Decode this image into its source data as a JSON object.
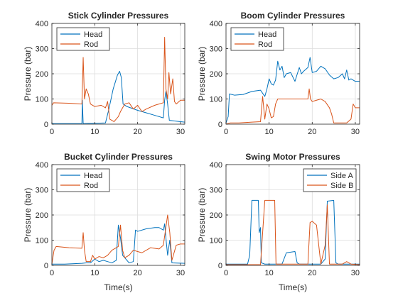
{
  "colors": {
    "series1": "#0072BD",
    "series2": "#D95319",
    "grid": "#dcdcdc",
    "axis": "#262626"
  },
  "chart_data": [
    {
      "type": "line",
      "title": "Stick Cylinder Pressures",
      "xlabel": "",
      "ylabel": "Pressure (bar)",
      "xlim": [
        0,
        31
      ],
      "ylim": [
        0,
        400
      ],
      "xticks": [
        0,
        10,
        20,
        30
      ],
      "yticks": [
        0,
        100,
        200,
        300,
        400
      ],
      "grid": true,
      "legend": "top-left",
      "series": [
        {
          "name": "Head",
          "points": [
            [
              0,
              2
            ],
            [
              7,
              2
            ],
            [
              7.1,
              95
            ],
            [
              7.3,
              2
            ],
            [
              12.5,
              5
            ],
            [
              13.3,
              60
            ],
            [
              14.3,
              140
            ],
            [
              15.3,
              195
            ],
            [
              15.8,
              210
            ],
            [
              16.2,
              185
            ],
            [
              16.6,
              80
            ],
            [
              17.5,
              70
            ],
            [
              20,
              55
            ],
            [
              22,
              45
            ],
            [
              24,
              35
            ],
            [
              26,
              25
            ],
            [
              26.3,
              95
            ],
            [
              26.6,
              130
            ],
            [
              27,
              80
            ],
            [
              27.4,
              15
            ],
            [
              30,
              10
            ],
            [
              31,
              8
            ]
          ]
        },
        {
          "name": "Rod",
          "points": [
            [
              0,
              75
            ],
            [
              0.4,
              85
            ],
            [
              4,
              83
            ],
            [
              7,
              80
            ],
            [
              7.3,
              265
            ],
            [
              7.6,
              100
            ],
            [
              8,
              140
            ],
            [
              8.5,
              120
            ],
            [
              9,
              80
            ],
            [
              10,
              70
            ],
            [
              11.5,
              75
            ],
            [
              12.5,
              65
            ],
            [
              13,
              90
            ],
            [
              13.5,
              20
            ],
            [
              14.5,
              10
            ],
            [
              15.5,
              30
            ],
            [
              16,
              50
            ],
            [
              16.5,
              65
            ],
            [
              17,
              80
            ],
            [
              18,
              85
            ],
            [
              19,
              60
            ],
            [
              20,
              75
            ],
            [
              21,
              50
            ],
            [
              22,
              60
            ],
            [
              24,
              75
            ],
            [
              26,
              85
            ],
            [
              26.3,
              345
            ],
            [
              26.6,
              140
            ],
            [
              27,
              100
            ],
            [
              27.3,
              205
            ],
            [
              27.7,
              120
            ],
            [
              28.2,
              180
            ],
            [
              28.6,
              90
            ],
            [
              29,
              80
            ],
            [
              30,
              95
            ],
            [
              31,
              95
            ]
          ]
        }
      ]
    },
    {
      "type": "line",
      "title": "Boom Cylinder Pressures",
      "xlabel": "",
      "ylabel": "Pressure (bar)",
      "xlim": [
        0,
        31
      ],
      "ylim": [
        0,
        400
      ],
      "xticks": [
        0,
        10,
        20,
        30
      ],
      "yticks": [
        0,
        100,
        200,
        300,
        400
      ],
      "grid": true,
      "legend": "top-left",
      "series": [
        {
          "name": "Head",
          "points": [
            [
              0,
              5
            ],
            [
              0.5,
              30
            ],
            [
              0.8,
              120
            ],
            [
              2,
              115
            ],
            [
              4,
              118
            ],
            [
              6,
              130
            ],
            [
              8,
              135
            ],
            [
              9,
              110
            ],
            [
              9.5,
              140
            ],
            [
              10,
              180
            ],
            [
              10.5,
              160
            ],
            [
              11,
              155
            ],
            [
              11.5,
              175
            ],
            [
              12,
              250
            ],
            [
              12.5,
              215
            ],
            [
              13,
              230
            ],
            [
              13.5,
              185
            ],
            [
              14,
              200
            ],
            [
              15,
              205
            ],
            [
              16,
              170
            ],
            [
              17,
              225
            ],
            [
              17.5,
              200
            ],
            [
              18,
              210
            ],
            [
              19,
              225
            ],
            [
              19.5,
              265
            ],
            [
              20,
              205
            ],
            [
              21,
              210
            ],
            [
              22,
              230
            ],
            [
              23,
              220
            ],
            [
              24,
              195
            ],
            [
              25,
              180
            ],
            [
              26,
              185
            ],
            [
              27,
              200
            ],
            [
              27.5,
              180
            ],
            [
              28,
              215
            ],
            [
              28.5,
              175
            ],
            [
              29,
              180
            ],
            [
              30,
              170
            ],
            [
              31,
              170
            ]
          ]
        },
        {
          "name": "Rod",
          "points": [
            [
              0,
              0
            ],
            [
              1,
              5
            ],
            [
              3,
              5
            ],
            [
              6,
              8
            ],
            [
              8,
              10
            ],
            [
              8.5,
              110
            ],
            [
              9,
              20
            ],
            [
              9.5,
              80
            ],
            [
              10,
              60
            ],
            [
              10.5,
              25
            ],
            [
              11,
              30
            ],
            [
              11.5,
              80
            ],
            [
              12,
              100
            ],
            [
              13,
              100
            ],
            [
              15,
              100
            ],
            [
              17,
              100
            ],
            [
              19,
              100
            ],
            [
              19.3,
              140
            ],
            [
              19.6,
              100
            ],
            [
              20,
              90
            ],
            [
              21,
              95
            ],
            [
              22,
              100
            ],
            [
              23,
              90
            ],
            [
              24,
              65
            ],
            [
              24.5,
              40
            ],
            [
              25,
              5
            ],
            [
              28,
              5
            ],
            [
              29,
              20
            ],
            [
              29.5,
              80
            ],
            [
              30,
              65
            ],
            [
              31,
              65
            ]
          ]
        }
      ]
    },
    {
      "type": "line",
      "title": "Bucket Cylinder Pressures",
      "xlabel": "Time(s)",
      "ylabel": "Pressure (bar)",
      "xlim": [
        0,
        31
      ],
      "ylim": [
        0,
        400
      ],
      "xticks": [
        0,
        10,
        20,
        30
      ],
      "yticks": [
        0,
        100,
        200,
        300,
        400
      ],
      "grid": true,
      "legend": "top-left",
      "series": [
        {
          "name": "Head",
          "points": [
            [
              0,
              5
            ],
            [
              3,
              5
            ],
            [
              7,
              8
            ],
            [
              8,
              10
            ],
            [
              9,
              10
            ],
            [
              10,
              25
            ],
            [
              11,
              15
            ],
            [
              12,
              20
            ],
            [
              13,
              15
            ],
            [
              14,
              10
            ],
            [
              15,
              20
            ],
            [
              15.5,
              160
            ],
            [
              16,
              110
            ],
            [
              16.5,
              40
            ],
            [
              17,
              30
            ],
            [
              18,
              10
            ],
            [
              19,
              15
            ],
            [
              19.5,
              140
            ],
            [
              20,
              135
            ],
            [
              22,
              145
            ],
            [
              24,
              150
            ],
            [
              25,
              150
            ],
            [
              26,
              140
            ],
            [
              26.3,
              165
            ],
            [
              26.7,
              90
            ],
            [
              27,
              40
            ],
            [
              27.5,
              100
            ],
            [
              28,
              10
            ],
            [
              31,
              8
            ]
          ]
        },
        {
          "name": "Rod",
          "points": [
            [
              0,
              5
            ],
            [
              0.5,
              60
            ],
            [
              1,
              75
            ],
            [
              4,
              70
            ],
            [
              7,
              68
            ],
            [
              7.3,
              130
            ],
            [
              7.6,
              60
            ],
            [
              8,
              15
            ],
            [
              9,
              15
            ],
            [
              9.5,
              40
            ],
            [
              10,
              25
            ],
            [
              11,
              35
            ],
            [
              12,
              30
            ],
            [
              13,
              40
            ],
            [
              14,
              60
            ],
            [
              15,
              70
            ],
            [
              15.5,
              75
            ],
            [
              16,
              160
            ],
            [
              16.5,
              60
            ],
            [
              17,
              30
            ],
            [
              18,
              40
            ],
            [
              19,
              60
            ],
            [
              20,
              55
            ],
            [
              21,
              50
            ],
            [
              23,
              70
            ],
            [
              25,
              65
            ],
            [
              26,
              80
            ],
            [
              26.5,
              140
            ],
            [
              27,
              200
            ],
            [
              27.5,
              130
            ],
            [
              28,
              20
            ],
            [
              29,
              80
            ],
            [
              30,
              85
            ],
            [
              31,
              85
            ]
          ]
        }
      ]
    },
    {
      "type": "line",
      "title": "Swing Motor Pressures",
      "xlabel": "Time(s)",
      "ylabel": "Pressure (bar)",
      "xlim": [
        0,
        31
      ],
      "ylim": [
        0,
        400
      ],
      "xticks": [
        0,
        10,
        20,
        30
      ],
      "yticks": [
        0,
        100,
        200,
        300,
        400
      ],
      "grid": true,
      "legend": "top-right",
      "series": [
        {
          "name": "Side A",
          "points": [
            [
              0,
              5
            ],
            [
              5,
              5
            ],
            [
              5.5,
              40
            ],
            [
              6,
              258
            ],
            [
              7.5,
              258
            ],
            [
              7.7,
              130
            ],
            [
              8,
              150
            ],
            [
              8.2,
              10
            ],
            [
              9,
              5
            ],
            [
              13,
              5
            ],
            [
              14,
              50
            ],
            [
              16,
              55
            ],
            [
              16.5,
              10
            ],
            [
              17,
              5
            ],
            [
              22,
              5
            ],
            [
              23,
              25
            ],
            [
              23.5,
              255
            ],
            [
              25,
              258
            ],
            [
              25.5,
              10
            ],
            [
              26,
              5
            ],
            [
              31,
              5
            ]
          ]
        },
        {
          "name": "Side B",
          "points": [
            [
              0,
              3
            ],
            [
              8,
              3
            ],
            [
              9,
              258
            ],
            [
              11.3,
              258
            ],
            [
              11.6,
              5
            ],
            [
              19,
              5
            ],
            [
              19.5,
              170
            ],
            [
              20,
              175
            ],
            [
              21,
              160
            ],
            [
              22,
              5
            ],
            [
              23,
              80
            ],
            [
              23.5,
              240
            ],
            [
              24,
              5
            ],
            [
              27,
              5
            ],
            [
              28,
              15
            ],
            [
              29,
              5
            ],
            [
              31,
              3
            ]
          ]
        }
      ]
    }
  ]
}
